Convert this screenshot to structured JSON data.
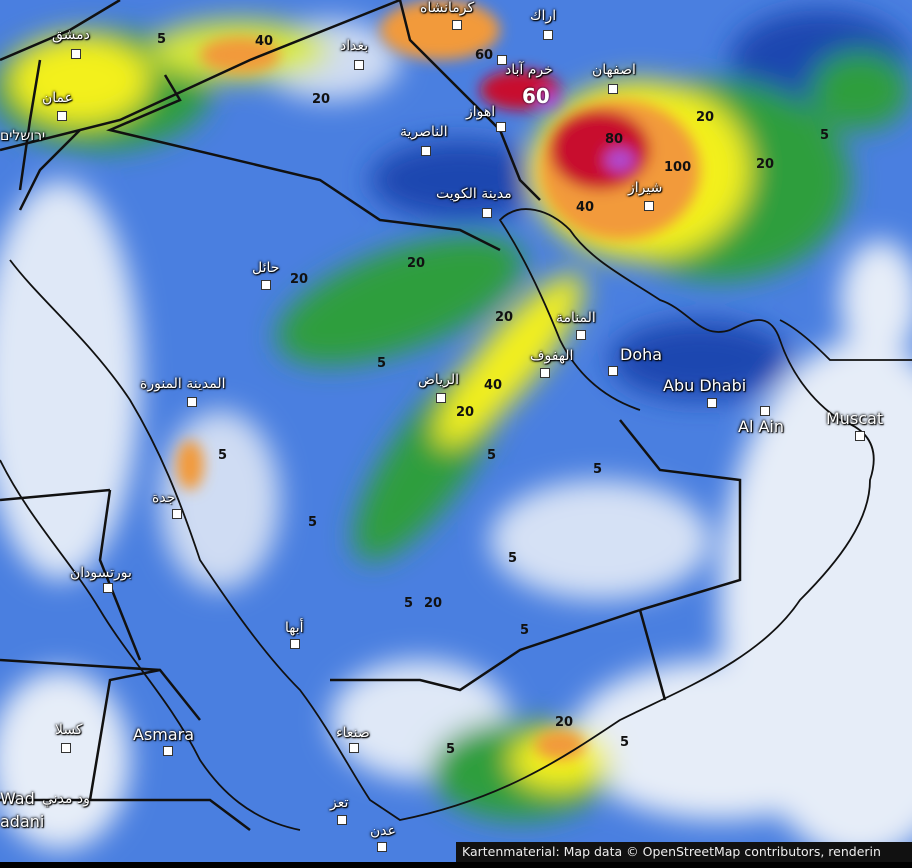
{
  "map": {
    "type": "precipitation-forecast",
    "colors": {
      "light": "#dfe8f7",
      "blue": "#3f74dc",
      "darkblue": "#1f47b0",
      "green": "#2e9e3e",
      "lightgreen": "#8fd14f",
      "yellow": "#f3f01e",
      "orange": "#f29a3a",
      "red": "#c8102e",
      "magenta": "#b04ad0",
      "border": "#111111"
    },
    "cities": [
      {
        "name": "دمشق",
        "latin": false
      },
      {
        "name": "عمان",
        "latin": false
      },
      {
        "name": "ירושלים",
        "latin": false
      },
      {
        "name": "كرمانشاه",
        "latin": false
      },
      {
        "name": "اراك",
        "latin": false
      },
      {
        "name": "بغداد",
        "latin": false
      },
      {
        "name": "خرم آباد",
        "latin": false
      },
      {
        "name": "اصفهان",
        "latin": false
      },
      {
        "name": "اهواز",
        "latin": false
      },
      {
        "name": "الناصرية",
        "latin": false
      },
      {
        "name": "مدينة الكويت",
        "latin": false
      },
      {
        "name": "شيراز",
        "latin": false
      },
      {
        "name": "حائل",
        "latin": false
      },
      {
        "name": "المنامة",
        "latin": false
      },
      {
        "name": "الهفوف",
        "latin": false
      },
      {
        "name": "Doha",
        "latin": true
      },
      {
        "name": "الرياض",
        "latin": false
      },
      {
        "name": "Abu Dhabi",
        "latin": true
      },
      {
        "name": "Al Ain",
        "latin": true
      },
      {
        "name": "Muscat",
        "latin": true
      },
      {
        "name": "المدينة المنورة",
        "latin": false
      },
      {
        "name": "جدة",
        "latin": false
      },
      {
        "name": "بورتسودان",
        "latin": false
      },
      {
        "name": "أبها",
        "latin": false
      },
      {
        "name": "كسلا",
        "latin": false
      },
      {
        "name": "Asmara",
        "latin": true
      },
      {
        "name": "صنعاء",
        "latin": false
      },
      {
        "name": "تعز",
        "latin": false
      },
      {
        "name": "عدن",
        "latin": false
      },
      {
        "name": "ود مدني",
        "latin": false
      },
      {
        "name": "Wad",
        "latin": true
      },
      {
        "name": "adani",
        "latin": true
      }
    ],
    "contour_labels": [
      "40",
      "20",
      "5",
      "60",
      "80",
      "100",
      "20",
      "40",
      "20",
      "5",
      "20",
      "20",
      "20",
      "40",
      "20",
      "5",
      "5",
      "5",
      "5",
      "5",
      "20",
      "5",
      "20",
      "5",
      "5",
      "5",
      "5",
      "60"
    ],
    "attribution": "Kartenmaterial: Map data © OpenStreetMap contributors, renderin"
  }
}
